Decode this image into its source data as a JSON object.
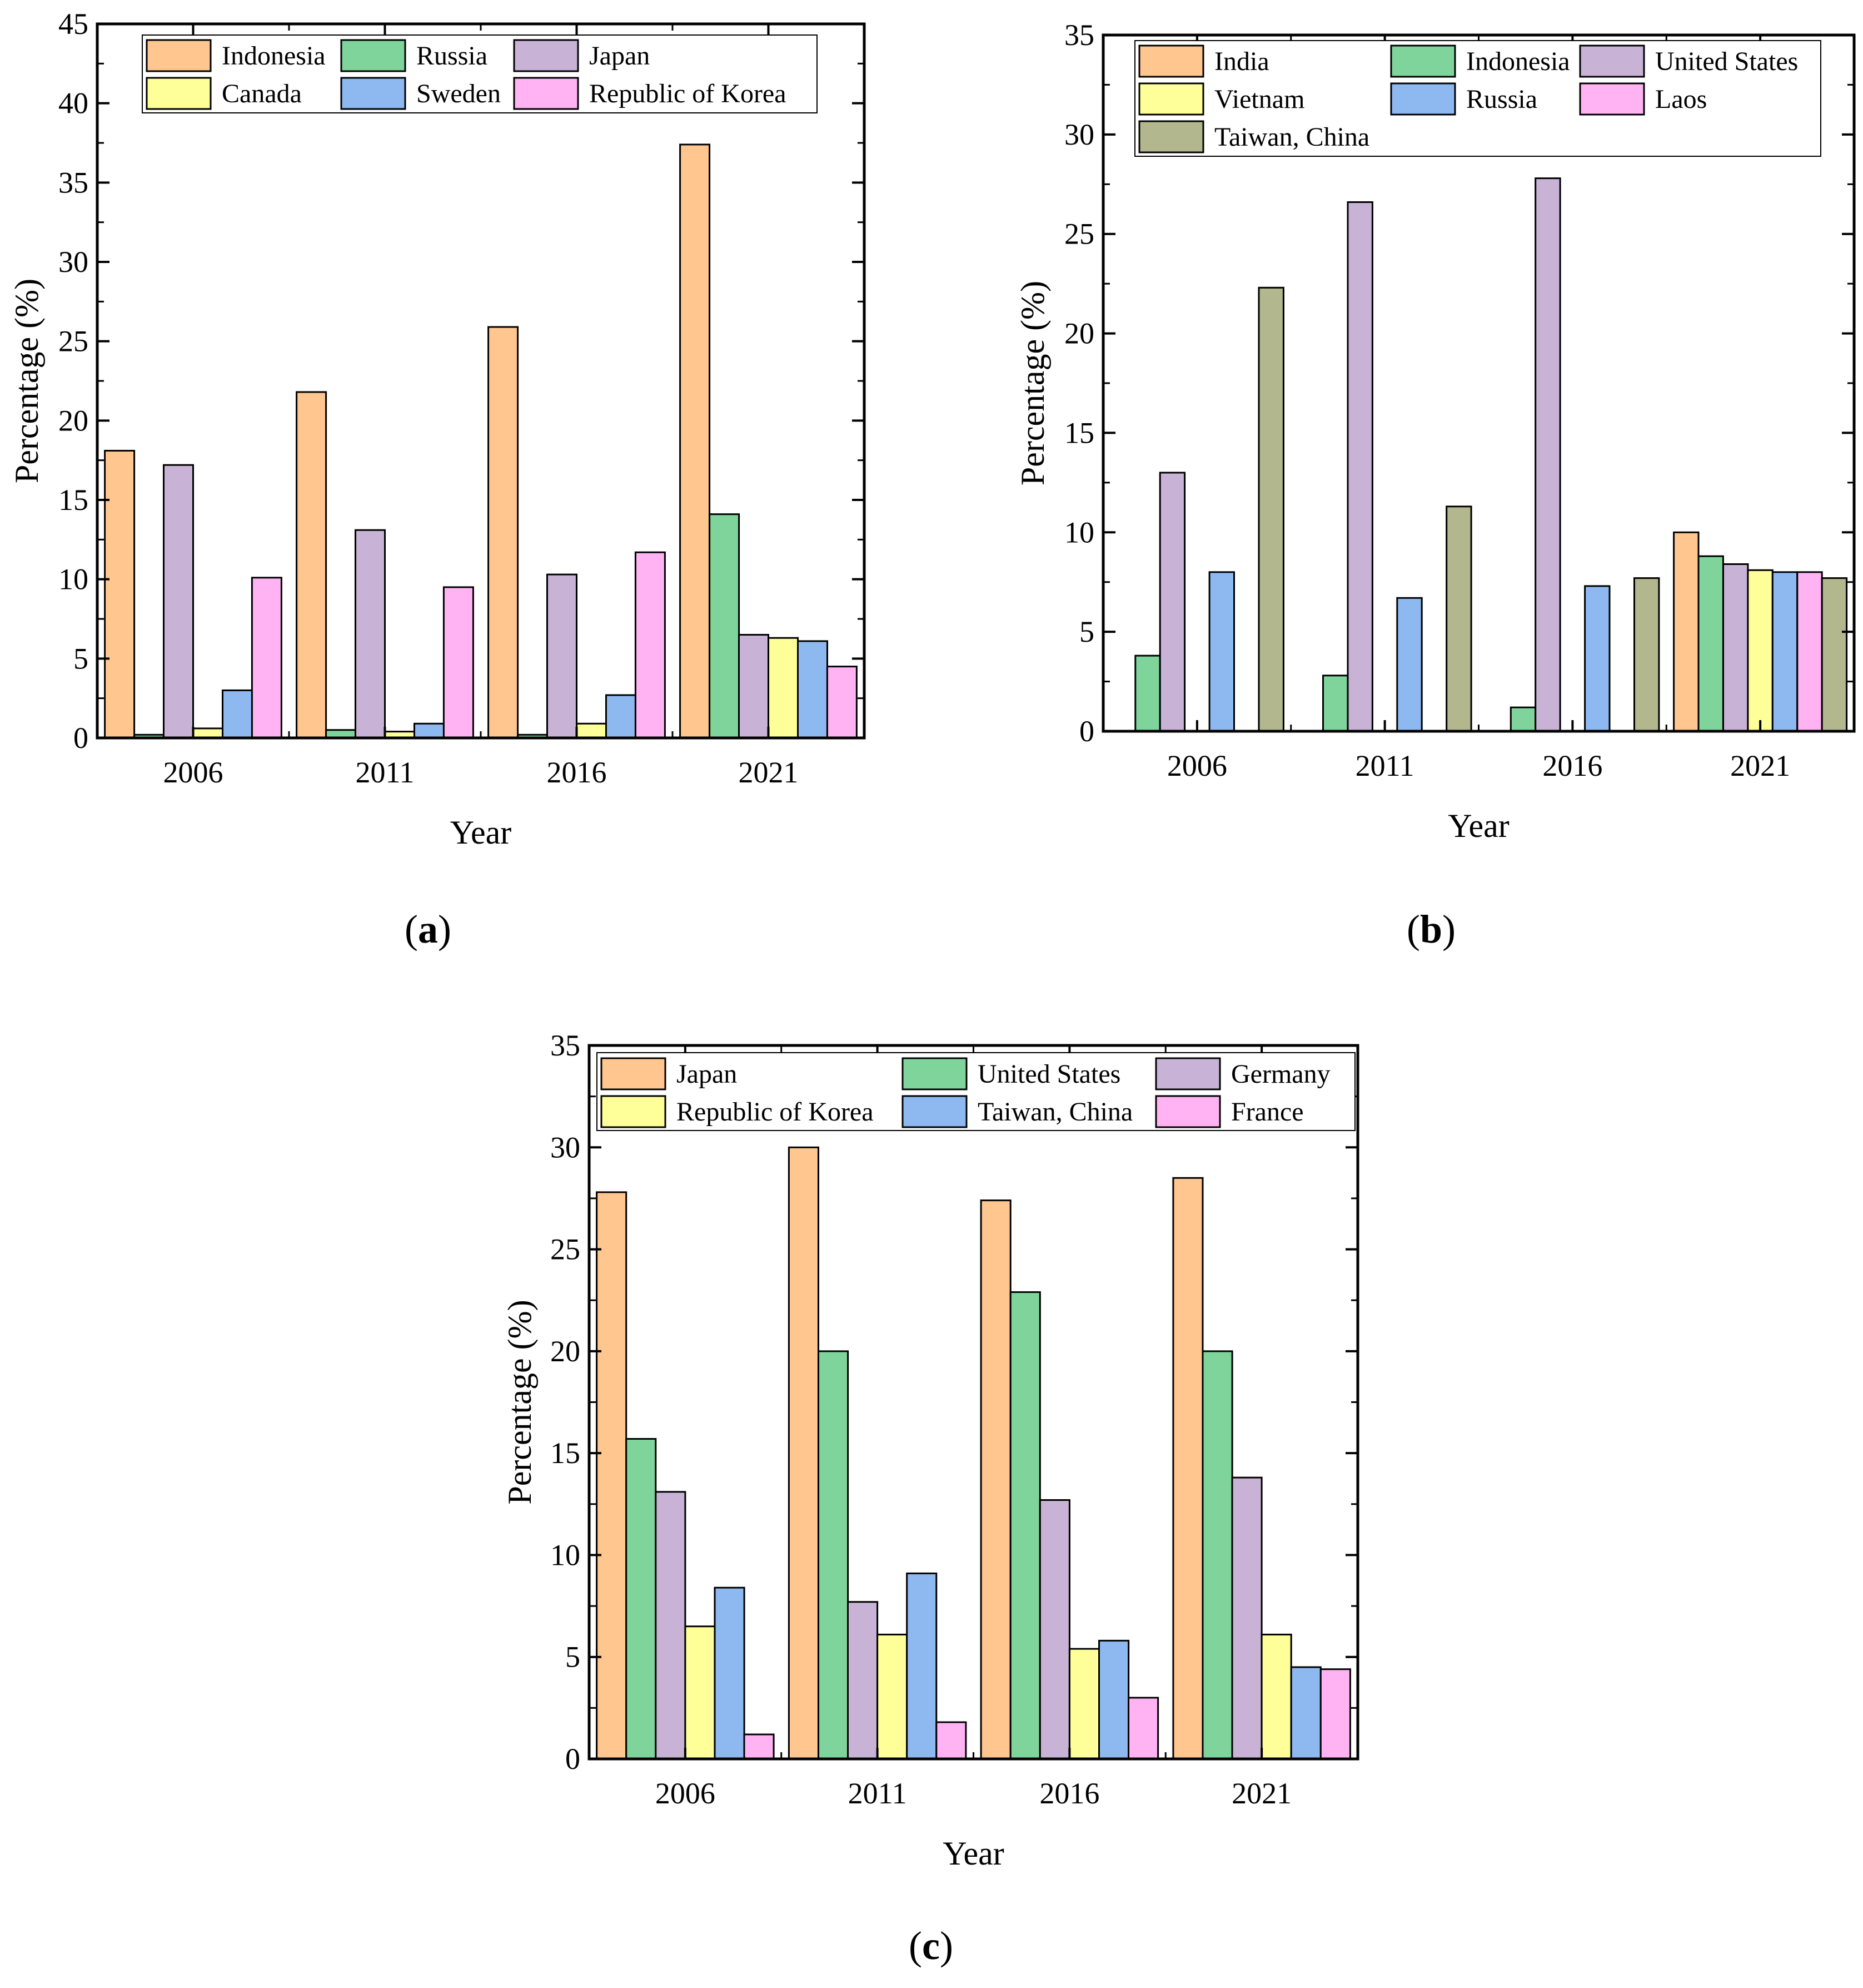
{
  "colors": {
    "orange": "#FFC68F",
    "green": "#7FD49C",
    "purple": "#C8B3D6",
    "yellow": "#FFFF99",
    "blue": "#8DB9F0",
    "pink": "#FFB3F3",
    "olive": "#B2B78E"
  },
  "chart_data": [
    {
      "type": "bar",
      "panel_label": "(a)",
      "xlabel": "Year",
      "ylabel": "Percentage (%)",
      "ylim": [
        0,
        45
      ],
      "yticks": [
        0,
        5,
        10,
        15,
        20,
        25,
        30,
        35,
        40,
        45
      ],
      "categories": [
        "2006",
        "2011",
        "2016",
        "2021"
      ],
      "legend": {
        "placement": "top",
        "columns": 3
      },
      "series": [
        {
          "name": "Indonesia",
          "color": "orange",
          "values": [
            18.1,
            21.8,
            25.9,
            37.4
          ]
        },
        {
          "name": "Russia",
          "color": "green",
          "values": [
            0.2,
            0.5,
            0.2,
            14.1
          ]
        },
        {
          "name": "Japan",
          "color": "purple",
          "values": [
            17.2,
            13.1,
            10.3,
            6.5
          ]
        },
        {
          "name": "Canada",
          "color": "yellow",
          "values": [
            0.6,
            0.4,
            0.9,
            6.3
          ]
        },
        {
          "name": "Sweden",
          "color": "blue",
          "values": [
            3.0,
            0.9,
            2.7,
            6.1
          ]
        },
        {
          "name": "Republic of Korea",
          "color": "pink",
          "values": [
            10.1,
            9.5,
            11.7,
            4.5
          ]
        }
      ]
    },
    {
      "type": "bar",
      "panel_label": "(b)",
      "xlabel": "Year",
      "ylabel": "Percentage (%)",
      "ylim": [
        0,
        35
      ],
      "yticks": [
        0,
        5,
        10,
        15,
        20,
        25,
        30,
        35
      ],
      "categories": [
        "2006",
        "2011",
        "2016",
        "2021"
      ],
      "legend": {
        "placement": "top",
        "columns": 3
      },
      "series": [
        {
          "name": "India",
          "color": "orange",
          "values": [
            0,
            0,
            0,
            10.0
          ]
        },
        {
          "name": "Indonesia",
          "color": "green",
          "values": [
            3.8,
            2.8,
            1.2,
            8.8
          ]
        },
        {
          "name": "United States",
          "color": "purple",
          "values": [
            13.0,
            26.6,
            27.8,
            8.4
          ]
        },
        {
          "name": "Vietnam",
          "color": "yellow",
          "values": [
            0,
            0,
            0,
            8.1
          ]
        },
        {
          "name": "Russia",
          "color": "blue",
          "values": [
            8.0,
            6.7,
            7.3,
            8.0
          ]
        },
        {
          "name": "Laos",
          "color": "pink",
          "values": [
            0,
            0,
            0,
            8.0
          ]
        },
        {
          "name": "Taiwan, China",
          "color": "olive",
          "values": [
            22.3,
            11.3,
            7.7,
            7.7
          ]
        }
      ]
    },
    {
      "type": "bar",
      "panel_label": "(c)",
      "xlabel": "Year",
      "ylabel": "Percentage (%)",
      "ylim": [
        0,
        35
      ],
      "yticks": [
        0,
        5,
        10,
        15,
        20,
        25,
        30,
        35
      ],
      "categories": [
        "2006",
        "2011",
        "2016",
        "2021"
      ],
      "legend": {
        "placement": "top",
        "columns": 3
      },
      "series": [
        {
          "name": "Japan",
          "color": "orange",
          "values": [
            27.8,
            30.0,
            27.4,
            28.5
          ]
        },
        {
          "name": "United States",
          "color": "green",
          "values": [
            15.7,
            20.0,
            22.9,
            20.0
          ]
        },
        {
          "name": "Germany",
          "color": "purple",
          "values": [
            13.1,
            7.7,
            12.7,
            13.8
          ]
        },
        {
          "name": "Republic of Korea",
          "color": "yellow",
          "values": [
            6.5,
            6.1,
            5.4,
            6.1
          ]
        },
        {
          "name": "Taiwan, China",
          "color": "blue",
          "values": [
            8.4,
            9.1,
            5.8,
            4.5
          ]
        },
        {
          "name": "France",
          "color": "pink",
          "values": [
            1.2,
            1.8,
            3.0,
            4.4
          ]
        }
      ]
    }
  ]
}
